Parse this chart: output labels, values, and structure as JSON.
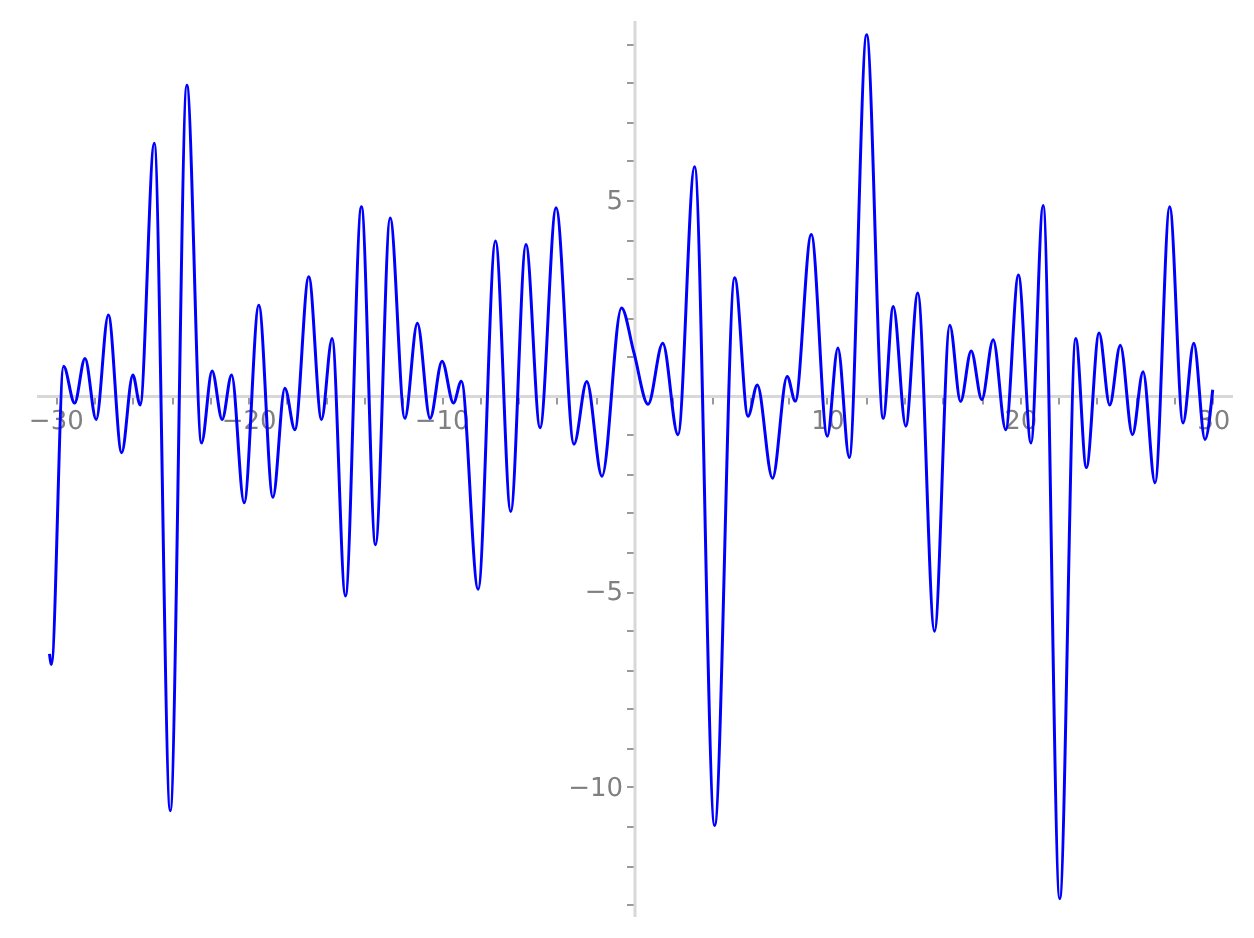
{
  "chart_data": {
    "type": "line",
    "xlim": [
      -31,
      31
    ],
    "ylim": [
      -13.3,
      9.6
    ],
    "xticks": [
      {
        "value": -30,
        "label": "−30"
      },
      {
        "value": -28,
        "label": null
      },
      {
        "value": -26,
        "label": null
      },
      {
        "value": -24,
        "label": null
      },
      {
        "value": -22,
        "label": null
      },
      {
        "value": -20,
        "label": "−20"
      },
      {
        "value": -18,
        "label": null
      },
      {
        "value": -16,
        "label": null
      },
      {
        "value": -14,
        "label": null
      },
      {
        "value": -12,
        "label": null
      },
      {
        "value": -10,
        "label": "−10"
      },
      {
        "value": -8,
        "label": null
      },
      {
        "value": -6,
        "label": null
      },
      {
        "value": -4,
        "label": null
      },
      {
        "value": -2,
        "label": null
      },
      {
        "value": 2,
        "label": null
      },
      {
        "value": 4,
        "label": null
      },
      {
        "value": 6,
        "label": null
      },
      {
        "value": 8,
        "label": null
      },
      {
        "value": 10,
        "label": "10"
      },
      {
        "value": 12,
        "label": null
      },
      {
        "value": 14,
        "label": null
      },
      {
        "value": 16,
        "label": null
      },
      {
        "value": 18,
        "label": null
      },
      {
        "value": 20,
        "label": "20"
      },
      {
        "value": 22,
        "label": null
      },
      {
        "value": 24,
        "label": null
      },
      {
        "value": 26,
        "label": null
      },
      {
        "value": 28,
        "label": null
      },
      {
        "value": 30,
        "label": "30"
      }
    ],
    "yticks": [
      {
        "value": -13,
        "label": null
      },
      {
        "value": -12,
        "label": null
      },
      {
        "value": -11,
        "label": null
      },
      {
        "value": -10,
        "label": "−10"
      },
      {
        "value": -9,
        "label": null
      },
      {
        "value": -8,
        "label": null
      },
      {
        "value": -7,
        "label": null
      },
      {
        "value": -6,
        "label": null
      },
      {
        "value": -5,
        "label": "−5"
      },
      {
        "value": -4,
        "label": null
      },
      {
        "value": -3,
        "label": null
      },
      {
        "value": -2,
        "label": null
      },
      {
        "value": -1,
        "label": null
      },
      {
        "value": 1,
        "label": null
      },
      {
        "value": 2,
        "label": null
      },
      {
        "value": 3,
        "label": null
      },
      {
        "value": 4,
        "label": null
      },
      {
        "value": 5,
        "label": "5"
      },
      {
        "value": 6,
        "label": null
      },
      {
        "value": 7,
        "label": null
      },
      {
        "value": 8,
        "label": null
      },
      {
        "value": 9,
        "label": null
      }
    ],
    "x": [
      -30.3,
      -30.2,
      -29.57,
      -29.0,
      -28.46,
      -27.88,
      -27.25,
      -26.56,
      -25.98,
      -25.6,
      -24.87,
      -24.04,
      -23.18,
      -22.42,
      -21.87,
      -21.35,
      -20.86,
      -20.21,
      -19.45,
      -18.72,
      -18.1,
      -17.58,
      -16.86,
      -16.2,
      -15.65,
      -14.96,
      -14.13,
      -13.4,
      -12.64,
      -11.88,
      -11.23,
      -10.57,
      -9.95,
      -9.36,
      -8.95,
      -8.08,
      -7.18,
      -6.39,
      -5.6,
      -4.87,
      -4.04,
      -3.11,
      -2.45,
      -1.66,
      -0.65,
      0.0,
      0.73,
      1.49,
      2.28,
      3.14,
      4.18,
      5.22,
      5.91,
      6.39,
      7.18,
      7.94,
      8.36,
      9.19,
      10.02,
      10.57,
      11.16,
      12.06,
      12.92,
      13.44,
      14.09,
      14.71,
      15.58,
      16.37,
      16.93,
      17.48,
      18.03,
      18.62,
      19.27,
      19.93,
      20.58,
      21.21,
      22.07,
      22.9,
      23.45,
      24.11,
      24.66,
      25.21,
      25.84,
      26.39,
      27.01,
      27.77,
      28.46,
      29.02,
      29.6,
      30.0
    ],
    "series": [
      {
        "color": "#0000ff",
        "values": [
          -6.6,
          -6.87,
          0.75,
          -0.19,
          0.95,
          -0.61,
          2.06,
          -1.46,
          0.53,
          -0.24,
          6.45,
          -10.61,
          7.93,
          -1.21,
          0.63,
          -0.61,
          0.53,
          -2.74,
          2.31,
          -2.6,
          0.19,
          -0.87,
          3.04,
          -0.61,
          1.46,
          -5.12,
          4.83,
          -3.81,
          4.54,
          -0.58,
          1.85,
          -0.58,
          0.88,
          -0.19,
          0.37,
          -4.95,
          3.95,
          -2.96,
          3.86,
          -0.82,
          4.8,
          -1.24,
          0.36,
          -2.06,
          2.24,
          1.09,
          -0.22,
          1.34,
          -1.0,
          5.85,
          -10.99,
          3.01,
          -0.53,
          0.27,
          -2.11,
          0.49,
          -0.14,
          4.12,
          -1.04,
          1.22,
          -1.58,
          9.22,
          -0.58,
          2.28,
          -0.78,
          2.62,
          -6.02,
          1.8,
          -0.15,
          1.14,
          -0.1,
          1.43,
          -0.87,
          3.08,
          -1.21,
          4.86,
          -12.86,
          1.46,
          -1.84,
          1.6,
          -0.24,
          1.29,
          -1.0,
          0.61,
          -2.23,
          4.83,
          -0.7,
          1.34,
          -1.12,
          0.15
        ]
      }
    ]
  }
}
